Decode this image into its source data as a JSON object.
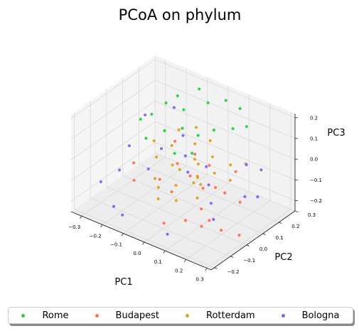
{
  "chart_data": {
    "type": "scatter",
    "projection": "3d",
    "title": "PCoA on phylum",
    "xlabel": "PC1",
    "ylabel": "PC2",
    "zlabel": "PC3",
    "xlim": [
      -0.35,
      0.32
    ],
    "ylim": [
      -0.22,
      0.3
    ],
    "zlim": [
      -0.25,
      0.22
    ],
    "xticks": [
      "−0.3",
      "−0.2",
      "−0.1",
      "0.0",
      "0.1",
      "0.2",
      "0.3"
    ],
    "yticks": [
      "−0.2",
      "−0.1",
      "0.0",
      "0.1",
      "0.2",
      "0.3"
    ],
    "zticks": [
      "−0.2",
      "−0.1",
      "0.0",
      "0.1",
      "0.2"
    ],
    "grid": true,
    "legend_position": "bottom",
    "series": [
      {
        "name": "Rome",
        "color": "#2ecc40",
        "points": [
          [
            -0.22,
            0.2,
            0.1
          ],
          [
            -0.18,
            0.22,
            0.14
          ],
          [
            -0.1,
            0.25,
            0.19
          ],
          [
            -0.05,
            0.24,
            0.15
          ],
          [
            0.02,
            0.26,
            0.18
          ],
          [
            0.08,
            0.27,
            0.16
          ],
          [
            -0.15,
            0.1,
            0.05
          ],
          [
            -0.08,
            0.12,
            0.08
          ],
          [
            -0.02,
            0.14,
            0.06
          ],
          [
            0.04,
            0.16,
            0.1
          ],
          [
            -0.12,
            0.18,
            0.12
          ],
          [
            0.1,
            0.2,
            0.11
          ],
          [
            -0.2,
            0.05,
            0.02
          ],
          [
            0.15,
            0.22,
            0.13
          ],
          [
            -0.04,
            0.02,
            0.03
          ],
          [
            -0.25,
            0.15,
            0.06
          ],
          [
            -0.28,
            0.12,
            0.04
          ],
          [
            0.02,
            0.05,
            0.04
          ]
        ]
      },
      {
        "name": "Budapest",
        "color": "#ff7256",
        "points": [
          [
            0.28,
            -0.18,
            -0.05
          ],
          [
            0.22,
            -0.15,
            -0.12
          ],
          [
            0.18,
            -0.1,
            -0.08
          ],
          [
            0.15,
            -0.05,
            -0.02
          ],
          [
            0.1,
            -0.02,
            0.0
          ],
          [
            0.05,
            0.0,
            -0.03
          ],
          [
            0.0,
            -0.05,
            -0.1
          ],
          [
            0.12,
            -0.12,
            -0.15
          ],
          [
            0.2,
            0.02,
            -0.06
          ],
          [
            -0.05,
            0.05,
            -0.04
          ],
          [
            -0.1,
            0.1,
            0.02
          ],
          [
            0.08,
            0.08,
            -0.01
          ],
          [
            0.25,
            0.05,
            -0.1
          ],
          [
            -0.18,
            -0.05,
            -0.12
          ],
          [
            -0.22,
            0.0,
            -0.08
          ],
          [
            0.3,
            -0.02,
            -0.2
          ],
          [
            0.16,
            0.14,
            -0.04
          ],
          [
            0.04,
            -0.15,
            -0.18
          ],
          [
            -0.02,
            0.12,
            -0.02
          ],
          [
            0.26,
            -0.08,
            -0.16
          ],
          [
            -0.08,
            -0.02,
            -0.09
          ],
          [
            0.14,
            0.04,
            -0.07
          ]
        ]
      },
      {
        "name": "Rotterdam",
        "color": "#daa520",
        "points": [
          [
            0.0,
            0.0,
            -0.02
          ],
          [
            0.05,
            0.05,
            0.0
          ],
          [
            -0.05,
            0.02,
            -0.03
          ],
          [
            0.1,
            0.0,
            -0.05
          ],
          [
            -0.1,
            0.08,
            0.01
          ],
          [
            0.02,
            -0.05,
            -0.06
          ],
          [
            0.08,
            0.1,
            0.02
          ],
          [
            -0.02,
            0.12,
            0.03
          ],
          [
            0.12,
            0.06,
            -0.02
          ],
          [
            -0.15,
            0.05,
            -0.05
          ],
          [
            0.06,
            -0.1,
            -0.09
          ],
          [
            -0.08,
            -0.05,
            -0.07
          ],
          [
            0.15,
            0.12,
            0.0
          ],
          [
            0.03,
            0.15,
            0.05
          ],
          [
            -0.12,
            0.15,
            0.04
          ],
          [
            0.18,
            0.08,
            -0.04
          ],
          [
            -0.04,
            -0.08,
            -0.08
          ],
          [
            0.09,
            -0.03,
            -0.03
          ],
          [
            -0.2,
            0.1,
            -0.02
          ],
          [
            0.01,
            0.08,
            -0.01
          ],
          [
            0.13,
            -0.06,
            -0.07
          ],
          [
            -0.06,
            0.18,
            0.06
          ],
          [
            0.07,
            0.02,
            -0.04
          ],
          [
            -0.01,
            -0.12,
            -0.1
          ],
          [
            0.2,
            0.15,
            0.01
          ]
        ]
      },
      {
        "name": "Bologna",
        "color": "#7b68ee",
        "points": [
          [
            -0.3,
            -0.1,
            -0.15
          ],
          [
            -0.25,
            -0.05,
            -0.1
          ],
          [
            -0.28,
            0.05,
            -0.05
          ],
          [
            -0.2,
            -0.15,
            -0.2
          ],
          [
            -0.15,
            0.0,
            -0.08
          ],
          [
            -0.1,
            0.15,
            0.02
          ],
          [
            -0.05,
            0.1,
            -0.03
          ],
          [
            0.0,
            0.05,
            -0.06
          ],
          [
            0.05,
            0.1,
            -0.04
          ],
          [
            0.1,
            0.05,
            -0.08
          ],
          [
            0.15,
            0.0,
            -0.12
          ],
          [
            0.2,
            -0.05,
            -0.15
          ],
          [
            0.25,
            0.08,
            -0.09
          ],
          [
            0.18,
            0.18,
            -0.02
          ],
          [
            -0.32,
            0.2,
            0.0
          ],
          [
            -0.22,
            0.25,
            0.05
          ],
          [
            0.08,
            -0.18,
            -0.2
          ],
          [
            -0.12,
            -0.2,
            -0.18
          ],
          [
            0.22,
            0.22,
            -0.05
          ],
          [
            -0.18,
            0.12,
            -0.06
          ],
          [
            0.28,
            0.12,
            -0.1
          ]
        ]
      }
    ]
  }
}
